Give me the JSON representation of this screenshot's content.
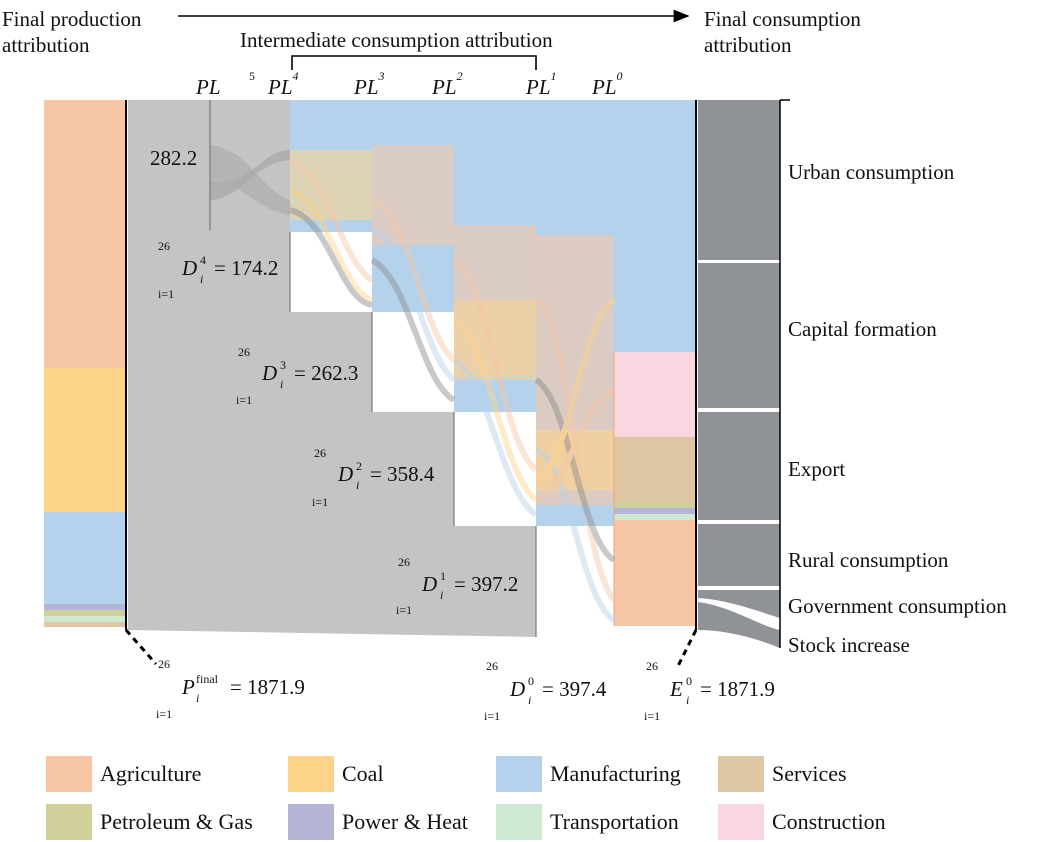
{
  "header": {
    "final_production": [
      "Final production",
      "attribution"
    ],
    "final_consumption": [
      "Final consumption",
      "attribution"
    ],
    "intermediate": "Intermediate consumption attribution"
  },
  "production_layers": [
    {
      "base": "PL",
      "sup": "5"
    },
    {
      "base": "PL",
      "sup": "4"
    },
    {
      "base": "PL",
      "sup": "3"
    },
    {
      "base": "PL",
      "sup": "2"
    },
    {
      "base": "PL",
      "sup": "1"
    },
    {
      "base": "PL",
      "sup": "0"
    }
  ],
  "node_values": {
    "pl5": "282.2",
    "d4": {
      "sum_top": "26",
      "sum_bottom": "i=1",
      "var": "D",
      "sub": "i",
      "sup": "4",
      "rhs": "= 174.2"
    },
    "d3": {
      "sum_top": "26",
      "sum_bottom": "i=1",
      "var": "D",
      "sub": "i",
      "sup": "3",
      "rhs": "= 262.3"
    },
    "d2": {
      "sum_top": "26",
      "sum_bottom": "i=1",
      "var": "D",
      "sub": "i",
      "sup": "2",
      "rhs": "= 358.4"
    },
    "d1": {
      "sum_top": "26",
      "sum_bottom": "i=1",
      "var": "D",
      "sub": "i",
      "sup": "1",
      "rhs": "= 397.2"
    }
  },
  "totals": {
    "p_final": {
      "sum_top": "26",
      "sum_bottom": "i=1",
      "var": "P",
      "sub": "i",
      "sup": "final",
      "rhs": "= 1871.9"
    },
    "d0": {
      "sum_top": "26",
      "sum_bottom": "i=1",
      "var": "D",
      "sub": "i",
      "sup": "0",
      "rhs": "= 397.4"
    },
    "e0": {
      "sum_top": "26",
      "sum_bottom": "i=1",
      "var": "E",
      "sub": "i",
      "sup": "0",
      "rhs": "= 1871.9"
    }
  },
  "final_uses": [
    "Urban consumption",
    "Capital formation",
    "Export",
    "Rural consumption",
    "Government consumption",
    "Stock increase"
  ],
  "legend": [
    {
      "label": "Agriculture",
      "color": "#f7c6a6"
    },
    {
      "label": "Coal",
      "color": "#fdd389"
    },
    {
      "label": "Manufacturing",
      "color": "#b5d2ec"
    },
    {
      "label": "Services",
      "color": "#dfc6a2"
    },
    {
      "label": "Petroleum & Gas",
      "color": "#cfcf99"
    },
    {
      "label": "Power & Heat",
      "color": "#b4b4d6"
    },
    {
      "label": "Transportation",
      "color": "#cfe8d2"
    },
    {
      "label": "Construction",
      "color": "#f9d7e0"
    }
  ],
  "colors": {
    "gray_flow": "#c4c4c4",
    "final_bar": "#8f9398",
    "divider": "#777777"
  }
}
